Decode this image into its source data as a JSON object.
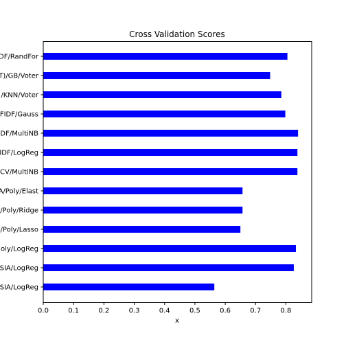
{
  "chart_data": {
    "type": "bar",
    "orientation": "horizontal",
    "title": "Cross Validation Scores",
    "xlabel": "x",
    "ylabel": "",
    "xlim": [
      0.0,
      0.885
    ],
    "xticks": [
      "0.0",
      "0.1",
      "0.2",
      "0.3",
      "0.4",
      "0.5",
      "0.6",
      "0.7",
      "0.8"
    ],
    "grid": false,
    "bar_color": "#0000ff",
    "categories": [
      "DF/RandFor",
      "T)/GB/Voter",
      "/KNN/Voter",
      "FIDF/Gauss",
      "DF/MultiNB",
      "IDF/LogReg",
      "CV/MultiNB",
      "A/Poly/Elast",
      "/Poly/Ridge",
      "/Poly/Lasso",
      "oly/LogReg",
      "SIA/LogReg",
      "SIA/LogReg"
    ],
    "values": [
      0.805,
      0.748,
      0.785,
      0.798,
      0.84,
      0.838,
      0.838,
      0.657,
      0.657,
      0.65,
      0.833,
      0.826,
      0.564
    ]
  }
}
